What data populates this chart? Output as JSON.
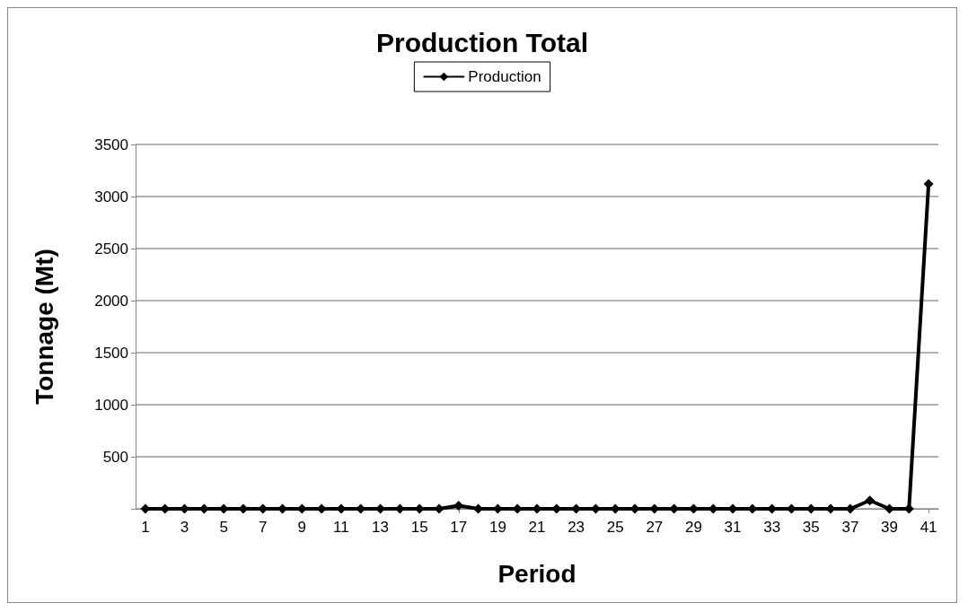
{
  "chart_data": {
    "type": "line",
    "title": "Production Total",
    "xlabel": "Period",
    "ylabel": "Tonnage (Mt)",
    "x": [
      1,
      2,
      3,
      4,
      5,
      6,
      7,
      8,
      9,
      10,
      11,
      12,
      13,
      14,
      15,
      16,
      17,
      18,
      19,
      20,
      21,
      22,
      23,
      24,
      25,
      26,
      27,
      28,
      29,
      30,
      31,
      32,
      33,
      34,
      35,
      36,
      37,
      38,
      39,
      40,
      41
    ],
    "xlim": [
      0.5,
      41.5
    ],
    "xticks": [
      1,
      3,
      5,
      7,
      9,
      11,
      13,
      15,
      17,
      19,
      21,
      23,
      25,
      27,
      29,
      31,
      33,
      35,
      37,
      39,
      41
    ],
    "series": [
      {
        "name": "Production",
        "color": "#000000",
        "values": [
          0,
          0,
          0,
          0,
          0,
          0,
          0,
          0,
          0,
          0,
          0,
          0,
          0,
          0,
          0,
          0,
          30,
          0,
          0,
          0,
          0,
          0,
          0,
          0,
          0,
          0,
          0,
          0,
          0,
          0,
          0,
          0,
          0,
          0,
          0,
          0,
          0,
          80,
          0,
          0,
          3120
        ]
      }
    ],
    "ylim": [
      0,
      3500
    ],
    "yticks": [
      {
        "value": 0,
        "label": null
      },
      500,
      1000,
      1500,
      2000,
      2500,
      3000,
      3500
    ],
    "grid": "y",
    "legend": "top",
    "marker": "diamond",
    "line_style": "solid"
  }
}
